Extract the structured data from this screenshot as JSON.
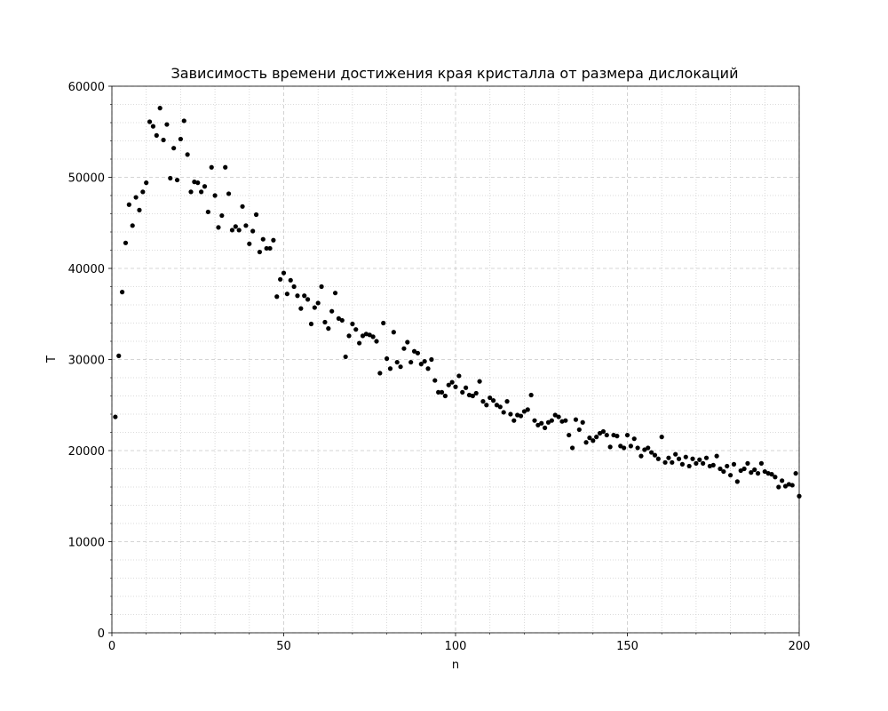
{
  "chart_data": {
    "type": "scatter",
    "title": "Зависимость времени достижения края кристалла от размера дислокаций",
    "xlabel": "n",
    "ylabel": "T",
    "xlim": [
      0,
      200
    ],
    "ylim": [
      0,
      60000
    ],
    "xticks": [
      0,
      50,
      100,
      150,
      200
    ],
    "yticks": [
      0,
      10000,
      20000,
      30000,
      40000,
      50000,
      60000
    ],
    "xticks_minor": [
      10,
      20,
      30,
      40,
      60,
      70,
      80,
      90,
      110,
      120,
      130,
      140,
      160,
      170,
      180,
      190
    ],
    "yticks_minor": [
      2000,
      4000,
      6000,
      8000,
      12000,
      14000,
      16000,
      18000,
      22000,
      24000,
      26000,
      28000,
      32000,
      34000,
      36000,
      38000,
      42000,
      44000,
      46000,
      48000,
      52000,
      54000,
      56000,
      58000
    ],
    "grid": true,
    "color": "#000000",
    "x": [
      1,
      2,
      3,
      4,
      5,
      6,
      7,
      8,
      9,
      10,
      11,
      12,
      13,
      14,
      15,
      16,
      17,
      18,
      19,
      20,
      21,
      22,
      23,
      24,
      25,
      26,
      27,
      28,
      29,
      30,
      31,
      32,
      33,
      34,
      35,
      36,
      37,
      38,
      39,
      40,
      41,
      42,
      43,
      44,
      45,
      46,
      47,
      48,
      49,
      50,
      51,
      52,
      53,
      54,
      55,
      56,
      57,
      58,
      59,
      60,
      61,
      62,
      63,
      64,
      65,
      66,
      67,
      68,
      69,
      70,
      71,
      72,
      73,
      74,
      75,
      76,
      77,
      78,
      79,
      80,
      81,
      82,
      83,
      84,
      85,
      86,
      87,
      88,
      89,
      90,
      91,
      92,
      93,
      94,
      95,
      96,
      97,
      98,
      99,
      100,
      101,
      102,
      103,
      104,
      105,
      106,
      107,
      108,
      109,
      110,
      111,
      112,
      113,
      114,
      115,
      116,
      117,
      118,
      119,
      120,
      121,
      122,
      123,
      124,
      125,
      126,
      127,
      128,
      129,
      130,
      131,
      132,
      133,
      134,
      135,
      136,
      137,
      138,
      139,
      140,
      141,
      142,
      143,
      144,
      145,
      146,
      147,
      148,
      149,
      150,
      151,
      152,
      153,
      154,
      155,
      156,
      157,
      158,
      159,
      160,
      161,
      162,
      163,
      164,
      165,
      166,
      167,
      168,
      169,
      170,
      171,
      172,
      173,
      174,
      175,
      176,
      177,
      178,
      179,
      180,
      181,
      182,
      183,
      184,
      185,
      186,
      187,
      188,
      189,
      190,
      191,
      192,
      193,
      194,
      195,
      196,
      197,
      198,
      199,
      200
    ],
    "y": [
      23700,
      30400,
      37400,
      42800,
      47000,
      44700,
      47800,
      46400,
      48400,
      49400,
      56100,
      55600,
      54600,
      57600,
      54100,
      55800,
      49900,
      53200,
      49700,
      54200,
      56200,
      52500,
      48400,
      49500,
      49400,
      48400,
      49000,
      46200,
      51100,
      48000,
      44500,
      45800,
      51100,
      48200,
      44200,
      44600,
      44200,
      46800,
      44700,
      42700,
      44100,
      45900,
      41800,
      43200,
      42200,
      42200,
      43100,
      36900,
      38800,
      39500,
      37200,
      38700,
      38000,
      37000,
      35600,
      37000,
      36600,
      33900,
      35700,
      36200,
      38000,
      34100,
      33400,
      35300,
      37300,
      34500,
      34300,
      30300,
      32600,
      33900,
      33300,
      31800,
      32600,
      32800,
      32700,
      32500,
      32000,
      28500,
      34000,
      30100,
      29000,
      33000,
      29700,
      29200,
      31200,
      31900,
      29700,
      30900,
      30700,
      29500,
      29800,
      29000,
      30000,
      27700,
      26400,
      26400,
      26000,
      27200,
      27500,
      27000,
      28200,
      26400,
      26900,
      26100,
      26000,
      26300,
      27600,
      25400,
      25000,
      25800,
      25500,
      25000,
      24800,
      24200,
      25400,
      24000,
      23300,
      23900,
      23800,
      24300,
      24500,
      26100,
      23300,
      22800,
      23000,
      22500,
      23100,
      23300,
      23900,
      23700,
      23200,
      23300,
      21700,
      20300,
      23400,
      22300,
      23100,
      20900,
      21400,
      21100,
      21500,
      21900,
      22100,
      21700,
      20400,
      21700,
      21600,
      20500,
      20300,
      21700,
      20500,
      21300,
      20300,
      19400,
      20100,
      20300,
      19800,
      19500,
      19100,
      21500,
      18700,
      19200,
      18700,
      19600,
      19100,
      18500,
      19300,
      18300,
      19100,
      18600,
      19000,
      18600,
      19200,
      18300,
      18400,
      19400,
      18000,
      17700,
      18300,
      17300,
      18500,
      16600,
      17800,
      18000,
      18600,
      17600,
      17900,
      17500,
      18600,
      17700,
      17500,
      17400,
      17100,
      16000,
      16700,
      16100,
      16300,
      16200,
      17500,
      15000
    ]
  }
}
